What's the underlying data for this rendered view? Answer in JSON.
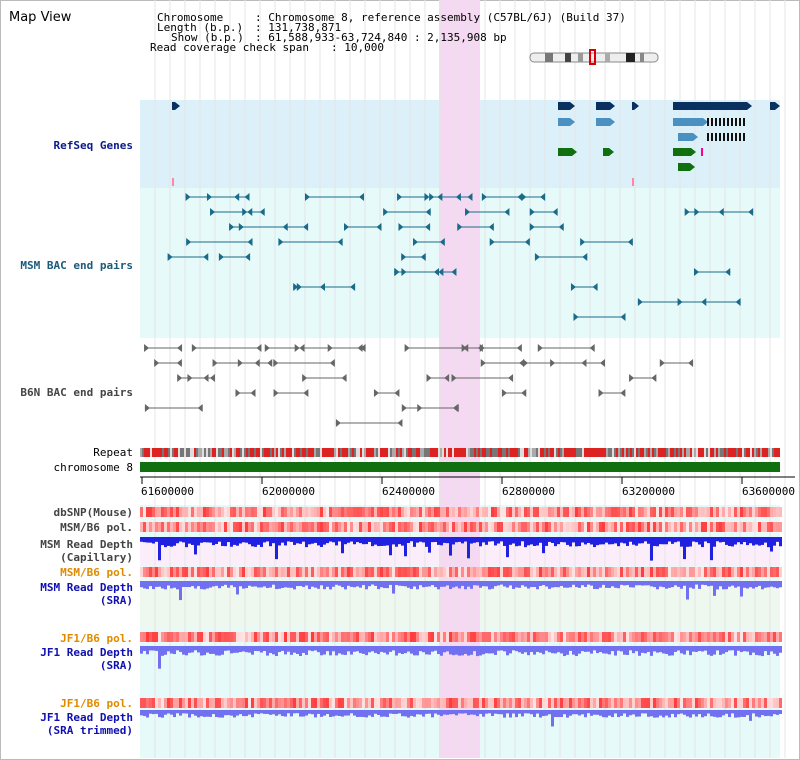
{
  "title": "Map View",
  "info": {
    "chromosome_label": "Chromosome",
    "chromosome_value": ": Chromosome 8, reference assembly (C57BL/6J) (Build 37)",
    "length_label": "Length (b.p.)",
    "length_value": ": 131,738,871",
    "show_label": "Show (b.p.)",
    "show_value": ": 61,588,933-63,724,840 : 2,135,908 bp",
    "coverage_label": "Read coverage check span",
    "coverage_value": ": 10,000"
  },
  "tracks": {
    "refseq": "RefSeq Genes",
    "msm_bac": "MSM BAC end pairs",
    "b6n_bac": "B6N BAC end pairs",
    "repeat": "Repeat",
    "chromosome": "chromosome 8",
    "dbsnp": "dbSNP(Mouse)",
    "msm_b6_pol1": "MSM/B6 pol.",
    "msm_read_cap_1": "MSM Read Depth",
    "msm_read_cap_2": "(Capillary)",
    "msm_b6_pol2": "MSM/B6 pol.",
    "msm_read_sra_1": "MSM Read Depth",
    "msm_read_sra_2": "(SRA)",
    "jf1_b6_pol1": "JF1/B6 pol.",
    "jf1_read_sra_1": "JF1 Read Depth",
    "jf1_read_sra_2": "(SRA)",
    "jf1_b6_pol2": "JF1/B6 pol.",
    "jf1_read_trim_1": "JF1 Read Depth",
    "jf1_read_trim_2": "(SRA trimmed)"
  },
  "axis": {
    "ticks": [
      "61600000",
      "62000000",
      "62400000",
      "62800000",
      "63200000",
      "63600000"
    ]
  },
  "colors": {
    "refseq_bg": "#dcf0fa",
    "bac_bg": "#e6fafa",
    "highlight": "#f5d8f2",
    "gene_dark": "#0a3060",
    "gene_mid": "#4a90c0",
    "gene_green": "#107010",
    "msm_bac": "#1a6a8a",
    "b6n_bac": "#666666",
    "chromosome_bar": "#107010",
    "depth_blue": "#2020e0",
    "depth_light": "#7070f0"
  }
}
